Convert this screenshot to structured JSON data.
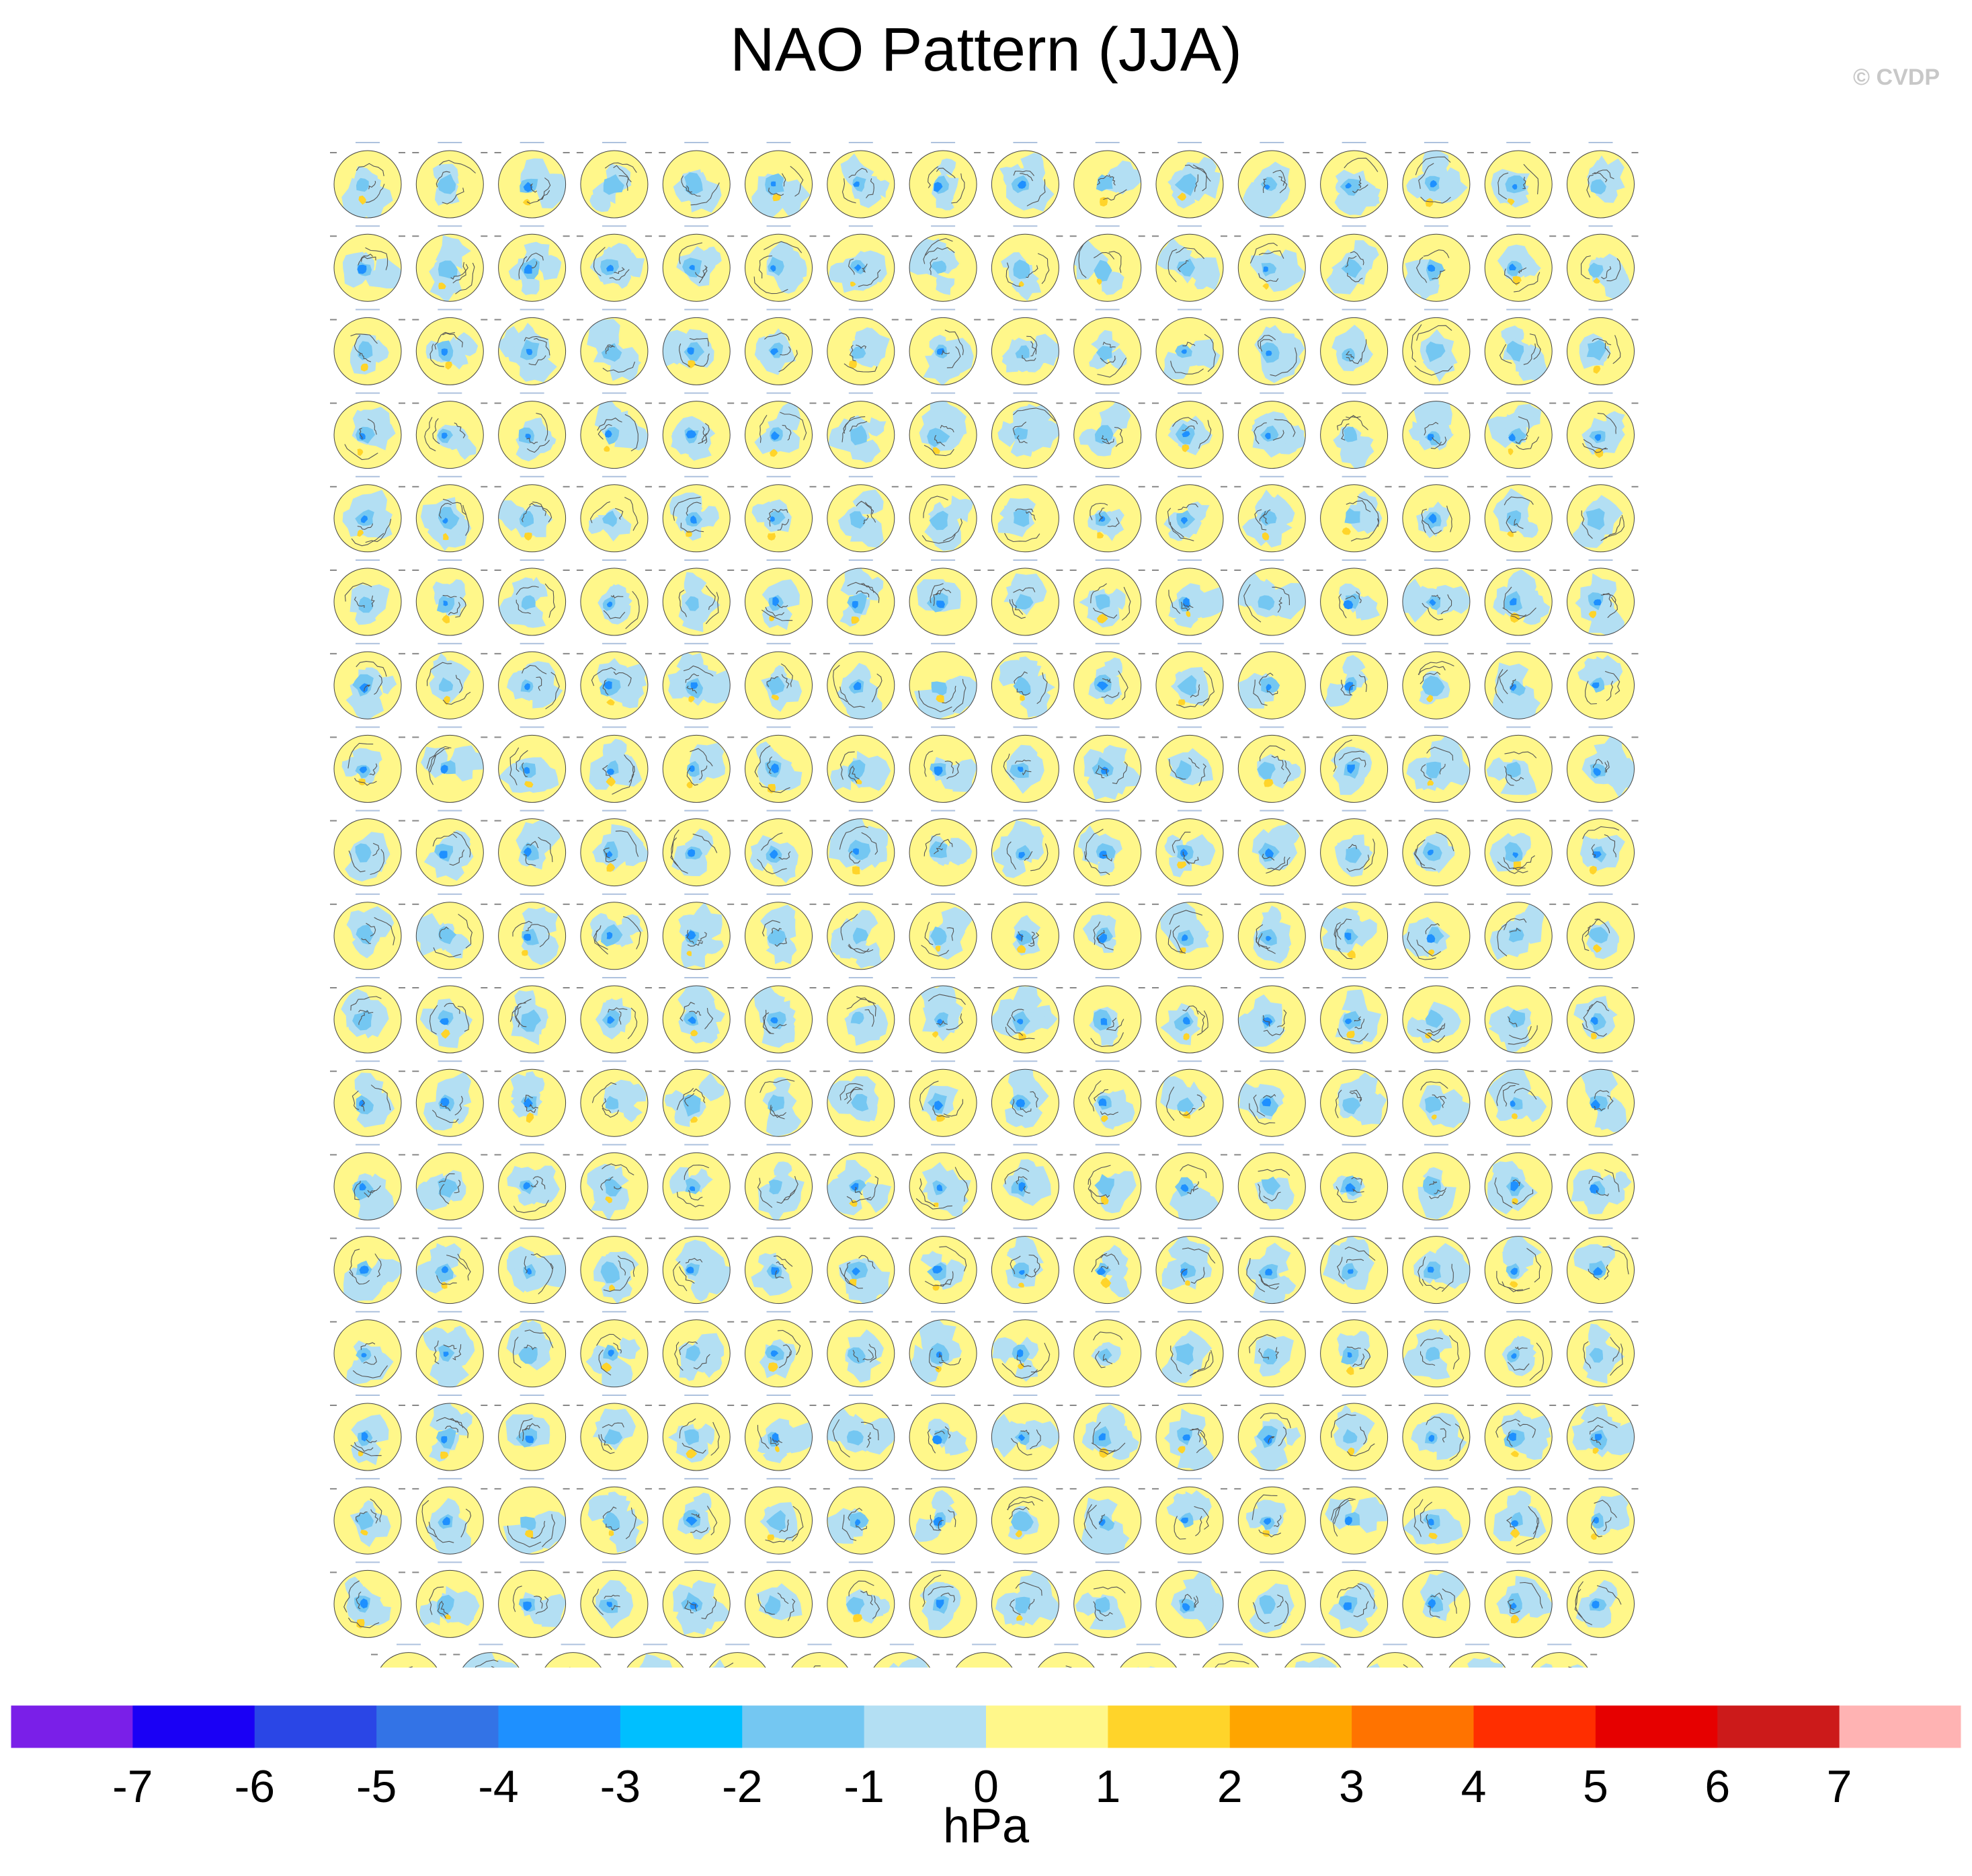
{
  "header": {
    "title": "NAO Pattern (JJA)",
    "watermark": "© CVDP"
  },
  "chart_data": {
    "type": "heatmap",
    "title": "NAO Pattern (JJA)",
    "description_unit": "hPa",
    "panel_grid": {
      "full_rows": 18,
      "columns": 16,
      "last_row_panels": 15,
      "total_panels": 303
    },
    "colorbar": {
      "unit": "hPa",
      "ticks": [
        -7,
        -6,
        -5,
        -4,
        -3,
        -2,
        -1,
        0,
        1,
        2,
        3,
        4,
        5,
        6,
        7
      ],
      "colors": [
        "#7a1fe8",
        "#1a00f5",
        "#2a46e6",
        "#3373e6",
        "#1e90ff",
        "#00bfff",
        "#74c7f2",
        "#b3dff3",
        "#fff78a",
        "#ffd42a",
        "#ffa500",
        "#ff7300",
        "#ff2e00",
        "#e60000",
        "#cc1a1a",
        "#ffb3b3"
      ]
    },
    "map_colors": {
      "ocean_land_positive": "#fff78a",
      "weak_negative": "#b3dff3",
      "moderate_negative": "#74c7f2",
      "strong_negative": "#1e90ff",
      "weak_positive_strong": "#ffd42a",
      "coastline": "#555555"
    }
  }
}
